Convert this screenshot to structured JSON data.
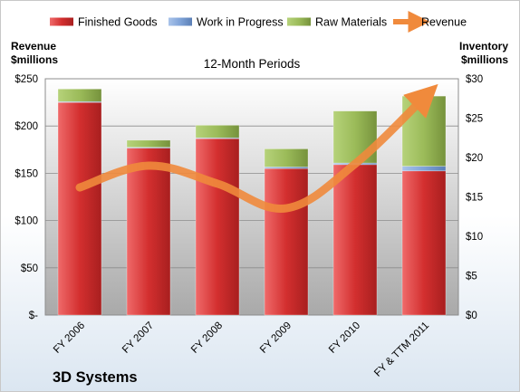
{
  "chart_data": {
    "type": "bar",
    "stacked": true,
    "title": "12-Month Periods",
    "company": "3D Systems",
    "categories": [
      "FY 2006",
      "FY 2007",
      "FY 2008",
      "FY 2009",
      "FY 2010",
      "FY & TTM 2011"
    ],
    "left_axis": {
      "label_line1": "Revenue",
      "label_line2": "$millions",
      "range": [
        0,
        250
      ],
      "ticks": [
        "$-",
        "$50",
        "$100",
        "$150",
        "$200",
        "$250"
      ]
    },
    "right_axis": {
      "label_line1": "Inventory",
      "label_line2": "$millions",
      "range": [
        0,
        30
      ],
      "ticks": [
        "$0",
        "$5",
        "$10",
        "$15",
        "$20",
        "$25",
        "$30"
      ]
    },
    "series": [
      {
        "name": "Finished Goods",
        "axis": "right",
        "color": "#d63a3a",
        "values": [
          27.0,
          21.2,
          22.4,
          18.6,
          19.1,
          18.3
        ]
      },
      {
        "name": "Work in Progress",
        "axis": "right",
        "color": "#7fa3d8",
        "values": [
          0.1,
          0.1,
          0.1,
          0.2,
          0.2,
          0.6
        ]
      },
      {
        "name": "Raw Materials",
        "axis": "right",
        "color": "#9bbb59",
        "values": [
          1.6,
          0.9,
          1.6,
          2.3,
          6.6,
          8.9
        ]
      },
      {
        "name": "Revenue",
        "axis": "left",
        "type": "line",
        "color": "#f08a3c",
        "values": [
          135,
          158,
          139,
          113,
          160,
          230
        ]
      }
    ],
    "grid": true,
    "legend_position": "top"
  }
}
